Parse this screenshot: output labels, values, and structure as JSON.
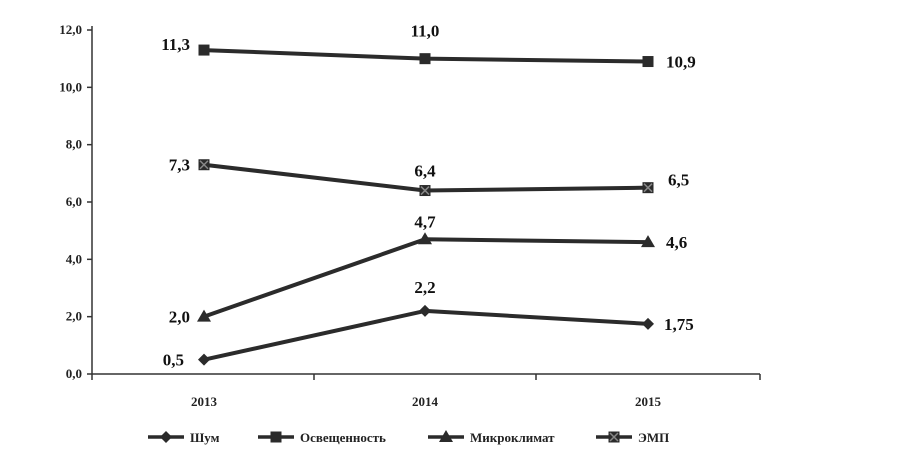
{
  "chart_data": {
    "type": "line",
    "title": "",
    "xlabel": "",
    "ylabel": "",
    "categories": [
      "2013",
      "2014",
      "2015"
    ],
    "ylim": [
      0,
      12
    ],
    "yticks": [
      "0,0",
      "2,0",
      "4,0",
      "6,0",
      "8,0",
      "10,0",
      "12,0"
    ],
    "ytick_values": [
      0,
      2,
      4,
      6,
      8,
      10,
      12
    ],
    "grid": false,
    "legend_position": "bottom",
    "series": [
      {
        "name": "Шум",
        "marker": "diamond",
        "values": [
          0.5,
          2.2,
          1.75
        ],
        "labels": [
          "0,5",
          "2,2",
          "1,75"
        ]
      },
      {
        "name": "Освещенность",
        "marker": "square",
        "values": [
          11.3,
          11.0,
          10.9
        ],
        "labels": [
          "11,3",
          "11,0",
          "10,9"
        ]
      },
      {
        "name": "Микроклимат",
        "marker": "triangle",
        "values": [
          2.0,
          4.7,
          4.6
        ],
        "labels": [
          "2,0",
          "4,7",
          "4,6"
        ]
      },
      {
        "name": "ЭМП",
        "marker": "x-square",
        "values": [
          7.3,
          6.4,
          6.5
        ],
        "labels": [
          "7,3",
          "6,4",
          "6,5"
        ]
      }
    ],
    "line_color": "#2b2b2b"
  }
}
